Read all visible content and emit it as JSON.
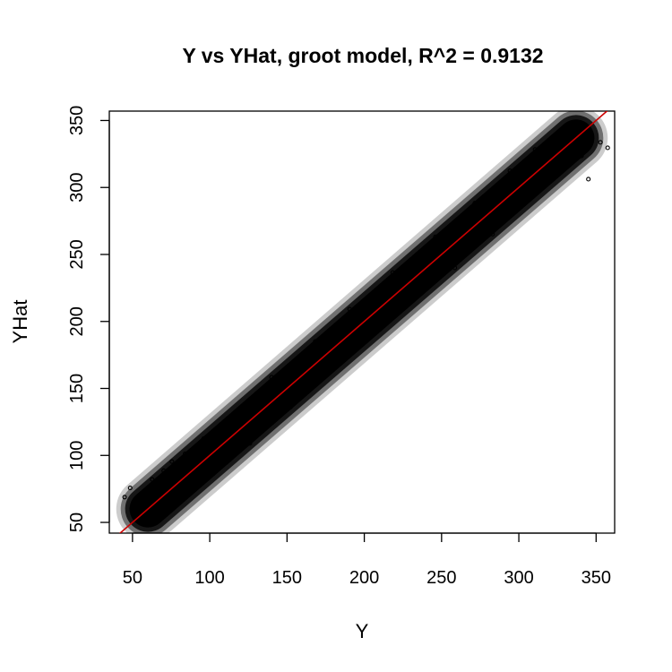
{
  "chart_data": {
    "type": "scatter",
    "title": "Y vs YHat, groot model, R^2 = 0.9132",
    "xlabel": "Y",
    "ylabel": "YHat",
    "xlim": [
      35,
      362
    ],
    "ylim": [
      42,
      357
    ],
    "xticks": [
      50,
      100,
      150,
      200,
      250,
      300,
      350
    ],
    "yticks": [
      50,
      100,
      150,
      200,
      250,
      300,
      350
    ],
    "grid": false,
    "legend": "none",
    "r_squared": 0.9132,
    "point_color": "#000000",
    "line_color": "#cc0000",
    "reference_line": {
      "slope": 1,
      "intercept": 0
    },
    "series": [
      {
        "points": [
          [
            44.9,
            68.9
          ],
          [
            48.5,
            75.7
          ],
          [
            52.0,
            62.4
          ],
          [
            55.2,
            70.3
          ],
          [
            58.4,
            66.0
          ],
          [
            60.3,
            57.3
          ],
          [
            62.7,
            82.1
          ],
          [
            66.4,
            71.5
          ],
          [
            70.2,
            88.6
          ],
          [
            72.0,
            64.8
          ],
          [
            75.5,
            95.4
          ],
          [
            78.3,
            76.2
          ],
          [
            84.0,
            101.2
          ],
          [
            88.2,
            82.4
          ],
          [
            96.0,
            112.5
          ],
          [
            104.5,
            98.1
          ],
          [
            118.0,
            132.6
          ],
          [
            126.0,
            109.0
          ],
          [
            140.0,
            158.4
          ],
          [
            152.3,
            136.1
          ],
          [
            168.2,
            185.0
          ],
          [
            176.0,
            160.4
          ],
          [
            190.5,
            209.2
          ],
          [
            203.0,
            188.8
          ],
          [
            218.4,
            236.5
          ],
          [
            231.2,
            215.4
          ],
          [
            246.0,
            263.2
          ],
          [
            258.6,
            240.0
          ],
          [
            271.5,
            288.3
          ],
          [
            283.0,
            265.2
          ],
          [
            294.2,
            312.5
          ],
          [
            302.0,
            289.0
          ],
          [
            310.5,
            328.4
          ],
          [
            317.3,
            305.5
          ],
          [
            322.0,
            337.8
          ],
          [
            328.4,
            318.0
          ],
          [
            335.2,
            345.3
          ],
          [
            340.6,
            323.5
          ],
          [
            345.0,
            306.2
          ],
          [
            352.8,
            333.7
          ],
          [
            357.5,
            329.6
          ]
        ]
      }
    ]
  }
}
